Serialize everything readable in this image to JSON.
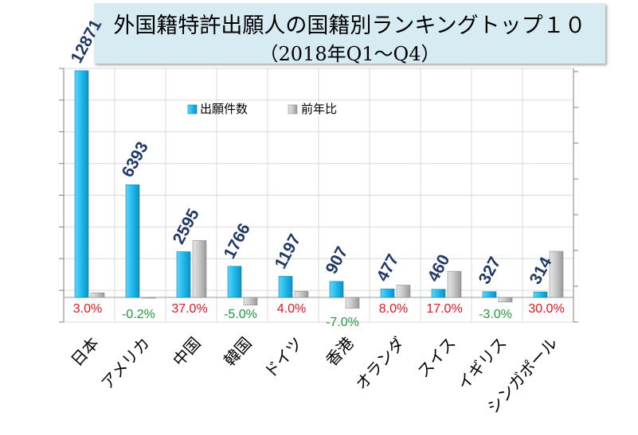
{
  "chart_data": {
    "type": "bar",
    "title": "外国籍特許出願人の国籍別ランキングトップ１０",
    "subtitle": "（2018年Q1～Q4）",
    "categories": [
      "日本",
      "アメリカ",
      "中国",
      "韓国",
      "ドイツ",
      "香港",
      "オランダ",
      "スイス",
      "イギリス",
      "シンガポール"
    ],
    "series": [
      {
        "name": "出願件数",
        "axis": "left",
        "values": [
          12871,
          6393,
          2595,
          1766,
          1197,
          907,
          477,
          460,
          327,
          314
        ],
        "color": "#1fb8ec"
      },
      {
        "name": "前年比",
        "axis": "right",
        "unit": "%",
        "values": [
          3.0,
          -0.2,
          37.0,
          -5.0,
          4.0,
          -7.0,
          8.0,
          17.0,
          -3.0,
          30.0
        ],
        "color": "#c8c8c8"
      }
    ],
    "left_axis_range": [
      -1000,
      13000
    ],
    "right_axis_range": [
      -10,
      40
    ],
    "grid": true,
    "legend": "top-center",
    "colors": {
      "positive_label": "#e8141c",
      "negative_label": "#1f9a3e",
      "count_label": "#1f3864"
    }
  }
}
